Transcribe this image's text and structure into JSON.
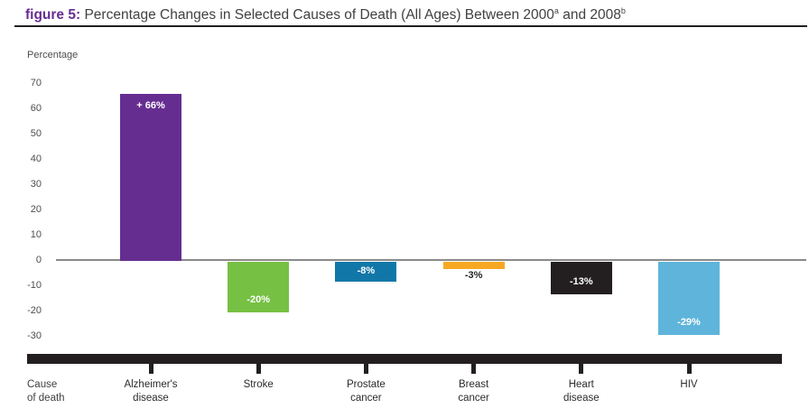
{
  "title": {
    "figure_label": "figure 5:",
    "main": " Percentage Changes in Selected Causes of Death (All Ages) Between 2000",
    "sup_a": "a",
    "mid": " and 2008",
    "sup_b": "b"
  },
  "chart_data": {
    "type": "bar",
    "title": "Percentage Changes in Selected Causes of Death (All Ages) Between 2000(a) and 2008(b)",
    "ylabel": "Percentage",
    "xlabel_lines": [
      "Cause",
      "of death"
    ],
    "ylim": [
      -30,
      70
    ],
    "yticks": [
      70,
      60,
      50,
      40,
      30,
      20,
      10,
      0,
      -10,
      -20,
      -30
    ],
    "grid": false,
    "legend": "none",
    "categories": [
      "Alzheimer's disease",
      "Stroke",
      "Prostate cancer",
      "Breast cancer",
      "Heart disease",
      "HIV"
    ],
    "values": [
      66,
      -20,
      -8,
      -3,
      -13,
      -29
    ],
    "bars": [
      {
        "category": "Alzheimer's disease",
        "label_lines": [
          "Alzheimer's",
          "disease"
        ],
        "value": 66,
        "label": "+ 66%",
        "color": "#662D91",
        "label_color": "#FFFFFF",
        "label_placement": "top-inside"
      },
      {
        "category": "Stroke",
        "label_lines": [
          "Stroke"
        ],
        "value": -20,
        "label": "-20%",
        "color": "#76C043",
        "label_color": "#FFFFFF",
        "label_placement": "bottom-inside"
      },
      {
        "category": "Prostate cancer",
        "label_lines": [
          "Prostate",
          "cancer"
        ],
        "value": -8,
        "label": "-8%",
        "color": "#1177A9",
        "label_color": "#FFFFFF",
        "label_placement": "middle"
      },
      {
        "category": "Breast cancer",
        "label_lines": [
          "Breast",
          "cancer"
        ],
        "value": -3,
        "label": "-3%",
        "color": "#F7A823",
        "label_color": "#231F20",
        "label_placement": "below"
      },
      {
        "category": "Heart disease",
        "label_lines": [
          "Heart",
          "disease"
        ],
        "value": -13,
        "label": "-13%",
        "color": "#231F20",
        "label_color": "#FFFFFF",
        "label_placement": "bottom-inside"
      },
      {
        "category": "HIV",
        "label_lines": [
          "HIV"
        ],
        "value": -29,
        "label": "-29%",
        "color": "#5EB4DA",
        "label_color": "#FFFFFF",
        "label_placement": "bottom-inside"
      }
    ],
    "colors": {
      "accent_purple": "#662D91",
      "zero_line": "#8A8A8A",
      "axis_bar": "#231F20",
      "text": "#414042"
    }
  }
}
